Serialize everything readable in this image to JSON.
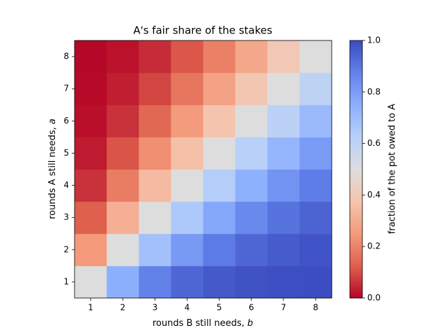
{
  "chart_data": {
    "type": "heatmap",
    "title": "A's fair share of the stakes",
    "xlabel": "rounds B still needs, b",
    "ylabel": "rounds A still needs, a",
    "colorbar_label": "fraction of the pot owed to A",
    "colormap": "coolwarm_r",
    "x": [
      1,
      2,
      3,
      4,
      5,
      6,
      7,
      8
    ],
    "y": [
      1,
      2,
      3,
      4,
      5,
      6,
      7,
      8
    ],
    "z": [
      [
        0.5,
        0.75,
        0.875,
        0.9375,
        0.9688,
        0.9844,
        0.9922,
        0.9961
      ],
      [
        0.25,
        0.5,
        0.6875,
        0.8125,
        0.8906,
        0.9375,
        0.9648,
        0.9805
      ],
      [
        0.125,
        0.3125,
        0.5,
        0.6563,
        0.7734,
        0.8555,
        0.9102,
        0.9453
      ],
      [
        0.0625,
        0.1875,
        0.3438,
        0.5,
        0.6367,
        0.7461,
        0.8281,
        0.8867
      ],
      [
        0.0313,
        0.1094,
        0.2266,
        0.3633,
        0.5,
        0.623,
        0.7256,
        0.8062
      ],
      [
        0.0156,
        0.0625,
        0.1445,
        0.2539,
        0.377,
        0.5,
        0.6128,
        0.7095
      ],
      [
        0.0078,
        0.0352,
        0.0898,
        0.1719,
        0.2744,
        0.3872,
        0.5,
        0.6047
      ],
      [
        0.0039,
        0.0195,
        0.0547,
        0.1133,
        0.1938,
        0.2905,
        0.3953,
        0.5
      ]
    ],
    "xlim": [
      0.5,
      8.5
    ],
    "ylim": [
      0.5,
      8.5
    ],
    "xticks": [
      1,
      2,
      3,
      4,
      5,
      6,
      7,
      8
    ],
    "yticks": [
      1,
      2,
      3,
      4,
      5,
      6,
      7,
      8
    ],
    "clim": [
      0,
      1
    ],
    "cticks": [
      {
        "value": 0,
        "label": "0.0"
      },
      {
        "value": 0.2,
        "label": "0.2"
      },
      {
        "value": 0.4,
        "label": "0.4"
      },
      {
        "value": 0.6,
        "label": "0.6"
      },
      {
        "value": 0.8,
        "label": "0.8"
      },
      {
        "value": 1,
        "label": "1.0"
      }
    ]
  }
}
